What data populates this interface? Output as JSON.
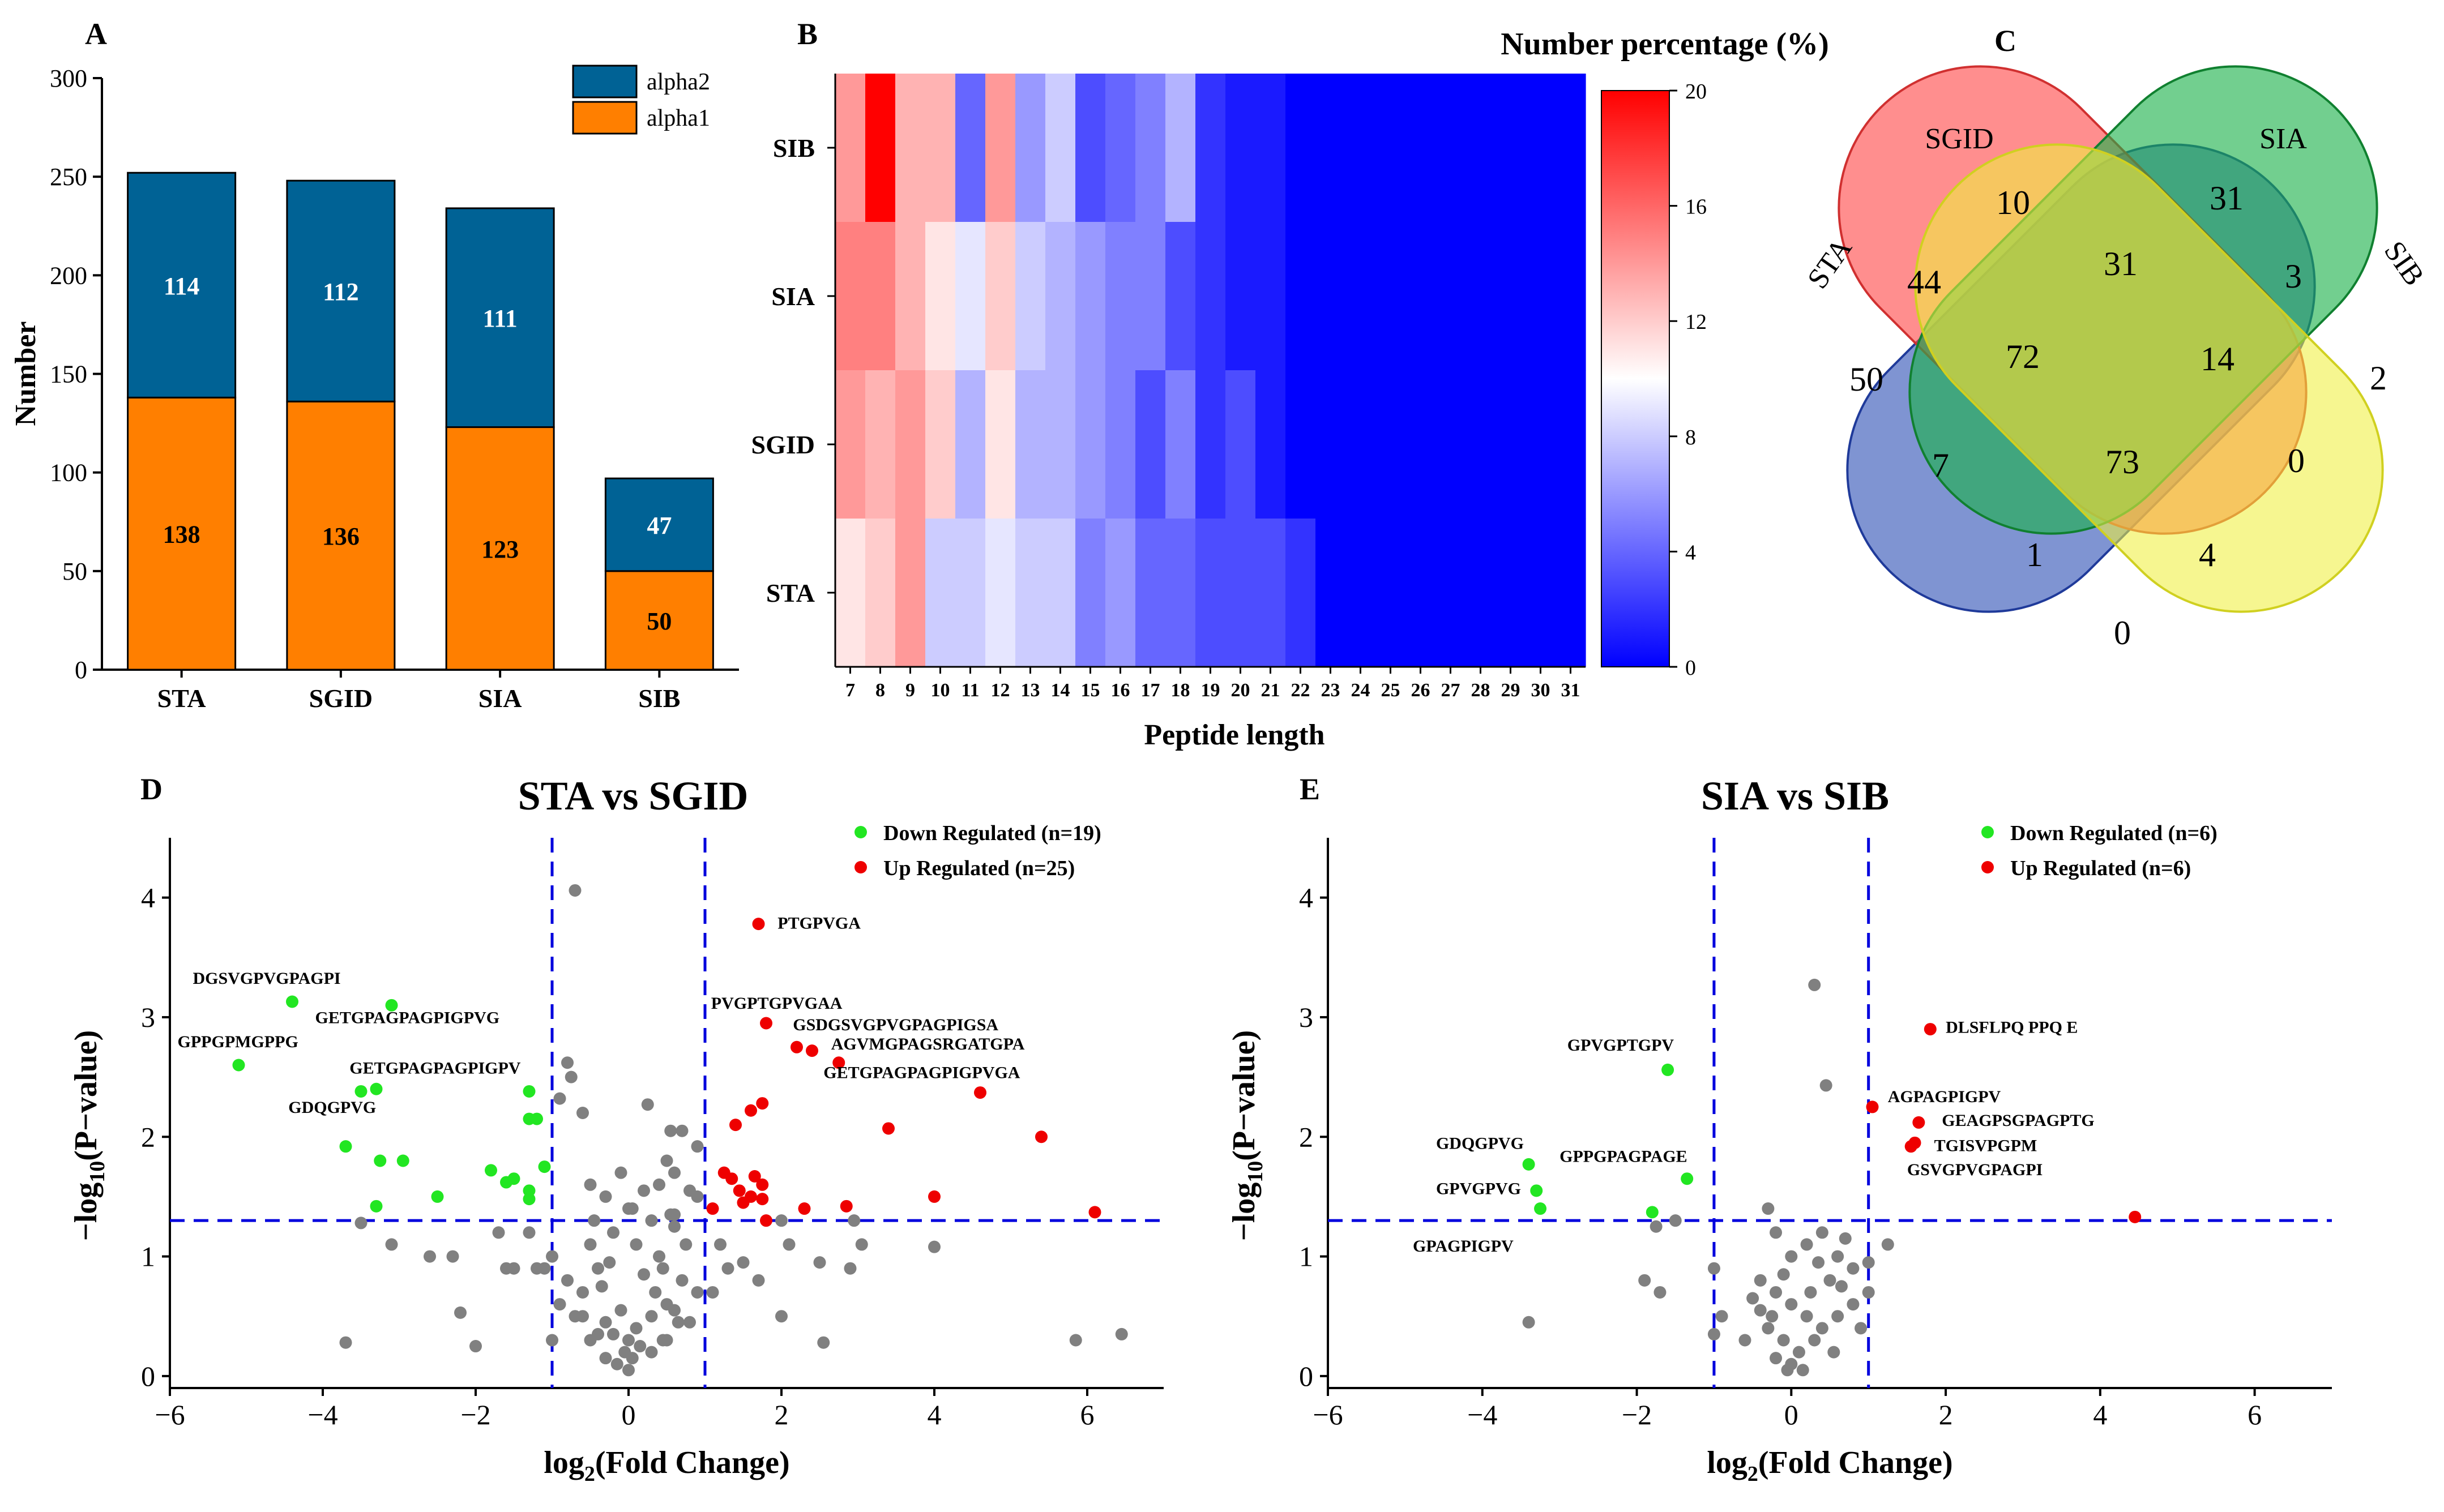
{
  "panels": {
    "A": "A",
    "B": "B",
    "C": "C",
    "D": "D",
    "E": "E"
  },
  "chart_data": [
    {
      "type": "bar",
      "id": "A",
      "stacked": true,
      "categories": [
        "STA",
        "SGID",
        "SIA",
        "SIB"
      ],
      "series": [
        {
          "name": "alpha1",
          "color": "#ff7f00",
          "values": [
            138,
            136,
            123,
            50
          ]
        },
        {
          "name": "alpha2",
          "color": "#006295",
          "values": [
            114,
            112,
            111,
            47
          ]
        }
      ],
      "ylabel": "Number",
      "ylim": [
        0,
        300
      ],
      "yticks": [
        0,
        50,
        100,
        150,
        200,
        250,
        300
      ],
      "legend": [
        "alpha2",
        "alpha1"
      ]
    },
    {
      "type": "heatmap",
      "id": "B",
      "title": "Number percentage (%)",
      "xlabel": "Peptide length",
      "x": [
        7,
        8,
        9,
        10,
        11,
        12,
        13,
        14,
        15,
        16,
        17,
        18,
        19,
        20,
        21,
        22,
        23,
        24,
        25,
        26,
        27,
        28,
        29,
        30,
        31
      ],
      "rows": [
        "SIB",
        "SIA",
        "SGID",
        "STA"
      ],
      "values": [
        [
          14,
          20,
          13,
          13,
          4,
          14,
          6,
          8,
          3,
          4,
          5,
          7,
          2,
          1,
          1,
          0,
          0,
          0,
          0,
          0,
          0,
          0,
          0,
          0,
          0
        ],
        [
          15,
          15,
          13,
          11,
          9,
          12,
          8,
          7,
          6,
          5,
          5,
          3,
          2,
          1,
          1,
          0,
          0,
          0,
          0,
          0,
          0,
          0,
          0,
          0,
          0
        ],
        [
          14,
          13,
          14,
          12,
          7,
          11,
          7,
          7,
          6,
          5,
          3,
          5,
          2,
          3,
          1,
          0,
          0,
          0,
          0,
          0,
          0,
          0,
          0,
          0,
          0
        ],
        [
          11,
          12,
          14,
          8,
          8,
          9,
          8,
          8,
          5,
          6,
          4,
          4,
          3,
          3,
          3,
          2,
          0,
          0,
          0,
          0,
          0,
          0,
          0,
          0,
          0
        ]
      ],
      "colorbar_ticks": [
        0,
        4,
        8,
        12,
        16,
        20
      ],
      "range": [
        0,
        20
      ]
    },
    {
      "type": "venn",
      "id": "C",
      "sets": [
        "SGID",
        "SIA",
        "STA",
        "SIB"
      ],
      "regions": [
        "10",
        "31",
        "44",
        "31",
        "3",
        "50",
        "72",
        "14",
        "2",
        "7",
        "73",
        "0",
        "1",
        "4",
        "0"
      ]
    },
    {
      "type": "scatter",
      "id": "D",
      "title": "STA vs SGID",
      "xlabel": "log2(Fold Change)",
      "ylabel": "-log10(P-value)",
      "xlim": [
        -6,
        7
      ],
      "ylim": [
        -0.1,
        4.5
      ],
      "xticks": [
        -6,
        -4,
        -2,
        0,
        2,
        4,
        6
      ],
      "yticks": [
        0,
        1,
        2,
        3,
        4
      ],
      "thresholds": {
        "fc": [
          -1,
          1
        ],
        "p": 1.3
      },
      "legend": [
        "Down Regulated (n=19)",
        "Up Regulated (n=25)"
      ],
      "down": [
        [
          -4.4,
          3.13
        ],
        [
          -3.1,
          3.1
        ],
        [
          -5.1,
          2.6
        ],
        [
          -3.5,
          2.38
        ],
        [
          -3.3,
          2.4
        ],
        [
          -1.3,
          2.38
        ],
        [
          -1.3,
          2.15
        ],
        [
          -1.2,
          2.15
        ],
        [
          -3.7,
          1.92
        ],
        [
          -3.25,
          1.8
        ],
        [
          -2.95,
          1.8
        ],
        [
          -1.8,
          1.72
        ],
        [
          -1.6,
          1.62
        ],
        [
          -1.5,
          1.65
        ],
        [
          -1.1,
          1.75
        ],
        [
          -1.3,
          1.55
        ],
        [
          -1.3,
          1.48
        ],
        [
          -2.5,
          1.5
        ],
        [
          -3.3,
          1.42
        ]
      ],
      "up": [
        [
          1.7,
          3.78
        ],
        [
          1.8,
          2.95
        ],
        [
          2.2,
          2.75
        ],
        [
          2.4,
          2.72
        ],
        [
          2.75,
          2.62
        ],
        [
          4.6,
          2.37
        ],
        [
          1.75,
          2.28
        ],
        [
          1.6,
          2.22
        ],
        [
          1.4,
          2.1
        ],
        [
          3.4,
          2.07
        ],
        [
          5.4,
          2.0
        ],
        [
          1.25,
          1.7
        ],
        [
          1.35,
          1.65
        ],
        [
          1.65,
          1.67
        ],
        [
          1.75,
          1.6
        ],
        [
          1.45,
          1.55
        ],
        [
          1.6,
          1.5
        ],
        [
          1.75,
          1.48
        ],
        [
          1.5,
          1.45
        ],
        [
          1.1,
          1.4
        ],
        [
          2.3,
          1.4
        ],
        [
          2.85,
          1.42
        ],
        [
          4.0,
          1.5
        ],
        [
          6.1,
          1.37
        ],
        [
          1.8,
          1.3
        ]
      ],
      "grey": [
        [
          -0.7,
          4.06
        ],
        [
          -0.8,
          2.62
        ],
        [
          -0.75,
          2.5
        ],
        [
          -0.9,
          2.32
        ],
        [
          -0.6,
          2.2
        ],
        [
          0.25,
          2.27
        ],
        [
          0.55,
          2.05
        ],
        [
          0.7,
          2.05
        ],
        [
          0.9,
          1.92
        ],
        [
          0.5,
          1.8
        ],
        [
          0.6,
          1.7
        ],
        [
          0.4,
          1.6
        ],
        [
          0.8,
          1.55
        ],
        [
          0.9,
          1.5
        ],
        [
          -0.5,
          1.6
        ],
        [
          -0.3,
          1.5
        ],
        [
          0.0,
          1.4
        ],
        [
          0.3,
          1.3
        ],
        [
          0.6,
          1.25
        ],
        [
          -0.2,
          1.2
        ],
        [
          0.1,
          1.1
        ],
        [
          0.4,
          1.0
        ],
        [
          -0.4,
          0.9
        ],
        [
          0.2,
          0.85
        ],
        [
          0.7,
          0.8
        ],
        [
          -0.6,
          0.7
        ],
        [
          0.5,
          0.6
        ],
        [
          -0.1,
          0.55
        ],
        [
          0.3,
          0.5
        ],
        [
          -0.3,
          0.45
        ],
        [
          0.1,
          0.4
        ],
        [
          -0.2,
          0.35
        ],
        [
          0.0,
          0.3
        ],
        [
          0.15,
          0.25
        ],
        [
          -0.05,
          0.2
        ],
        [
          0.05,
          0.15
        ],
        [
          -0.15,
          0.1
        ],
        [
          0.0,
          0.05
        ],
        [
          -0.5,
          0.3
        ],
        [
          0.5,
          0.3
        ],
        [
          -0.7,
          0.5
        ],
        [
          0.8,
          0.45
        ],
        [
          -0.8,
          0.8
        ],
        [
          0.9,
          0.7
        ],
        [
          -1.2,
          0.9
        ],
        [
          1.2,
          1.1
        ],
        [
          -1.3,
          1.2
        ],
        [
          1.3,
          0.9
        ],
        [
          2.0,
          1.3
        ],
        [
          2.1,
          1.1
        ],
        [
          2.5,
          0.95
        ],
        [
          2.95,
          1.3
        ],
        [
          3.05,
          1.1
        ],
        [
          2.9,
          0.9
        ],
        [
          2.55,
          0.28
        ],
        [
          4.0,
          1.08
        ],
        [
          5.85,
          0.3
        ],
        [
          6.45,
          0.35
        ],
        [
          -3.7,
          0.28
        ],
        [
          -3.5,
          1.28
        ],
        [
          -3.1,
          1.1
        ],
        [
          -2.6,
          1.0
        ],
        [
          -2.3,
          1.0
        ],
        [
          -2.2,
          0.53
        ],
        [
          -2.0,
          0.25
        ],
        [
          -1.0,
          0.3
        ],
        [
          -1.1,
          0.9
        ],
        [
          -1.5,
          0.9
        ],
        [
          -1.7,
          1.2
        ],
        [
          -1.6,
          0.9
        ],
        [
          -0.5,
          1.1
        ],
        [
          0.6,
          1.35
        ],
        [
          -0.9,
          0.6
        ],
        [
          0.35,
          0.7
        ],
        [
          0.45,
          0.9
        ],
        [
          -0.35,
          0.75
        ],
        [
          0.75,
          1.1
        ],
        [
          0.2,
          1.55
        ],
        [
          0.55,
          1.35
        ],
        [
          -0.25,
          0.95
        ],
        [
          -1.0,
          1.0
        ],
        [
          1.7,
          0.8
        ],
        [
          2.0,
          0.5
        ],
        [
          1.5,
          0.95
        ],
        [
          1.1,
          0.7
        ],
        [
          -0.1,
          1.7
        ],
        [
          0.05,
          1.4
        ],
        [
          -0.45,
          1.3
        ],
        [
          0.6,
          0.55
        ],
        [
          -0.6,
          0.5
        ],
        [
          0.3,
          0.2
        ],
        [
          -0.3,
          0.15
        ],
        [
          0.45,
          0.3
        ],
        [
          -0.4,
          0.35
        ],
        [
          0.65,
          0.45
        ]
      ],
      "labels": {
        "PTGPVGA": "PTGPVGA",
        "DGSVGPVGPAGPI": "DGSVGPVGPAGPI",
        "GETGPAGPAGPIGPVG": "GETGPAGPAGPIGPVG",
        "GPPGPMGPPG": "GPPGPMGPPG",
        "GETGPAGPAGPIGPV": "GETGPAGPAGPIGPV",
        "GDQGPVG": "GDQGPVG",
        "PVGPTGPVGAA": "PVGPTGPVGAA",
        "GSDGSVGPVGPAGPIGSA": "GSDGSVGPVGPAGPIGSA",
        "AGVMGPAGSRGATGPA": "AGVMGPAGSRGATGPA",
        "GETGPAGPAGPIGPVGA": "GETGPAGPAGPIGPVGA"
      }
    },
    {
      "type": "scatter",
      "id": "E",
      "title": "SIA vs SIB",
      "xlabel": "log2(Fold Change)",
      "ylabel": "-log10(P-value)",
      "xlim": [
        -6,
        7
      ],
      "ylim": [
        -0.1,
        4.5
      ],
      "xticks": [
        -6,
        -4,
        -2,
        0,
        2,
        4,
        6
      ],
      "yticks": [
        0,
        1,
        2,
        3,
        4
      ],
      "thresholds": {
        "fc": [
          -1,
          1
        ],
        "p": 1.3
      },
      "legend": [
        "Down Regulated (n=6)",
        "Up Regulated (n=6)"
      ],
      "down": [
        [
          -1.6,
          2.56
        ],
        [
          -3.4,
          1.77
        ],
        [
          -1.35,
          1.65
        ],
        [
          -3.3,
          1.55
        ],
        [
          -3.25,
          1.4
        ],
        [
          -1.8,
          1.37
        ]
      ],
      "up": [
        [
          1.8,
          2.9
        ],
        [
          1.05,
          2.25
        ],
        [
          1.65,
          2.12
        ],
        [
          1.6,
          1.95
        ],
        [
          1.55,
          1.92
        ],
        [
          4.45,
          1.33
        ]
      ],
      "grey": [
        [
          0.3,
          3.27
        ],
        [
          0.45,
          2.43
        ],
        [
          -3.4,
          0.45
        ],
        [
          -1.9,
          0.8
        ],
        [
          -1.7,
          0.7
        ],
        [
          -1.75,
          1.25
        ],
        [
          -1.5,
          1.3
        ],
        [
          -1.0,
          0.9
        ],
        [
          -0.9,
          0.5
        ],
        [
          -1.0,
          0.35
        ],
        [
          -0.3,
          1.4
        ],
        [
          -0.2,
          1.2
        ],
        [
          0.0,
          1.0
        ],
        [
          0.2,
          1.1
        ],
        [
          0.4,
          1.2
        ],
        [
          0.6,
          1.0
        ],
        [
          0.8,
          0.9
        ],
        [
          1.0,
          0.95
        ],
        [
          1.25,
          1.1
        ],
        [
          -0.4,
          0.8
        ],
        [
          -0.2,
          0.7
        ],
        [
          0.0,
          0.6
        ],
        [
          0.2,
          0.5
        ],
        [
          0.4,
          0.4
        ],
        [
          0.6,
          0.5
        ],
        [
          0.8,
          0.6
        ],
        [
          1.0,
          0.7
        ],
        [
          -0.3,
          0.4
        ],
        [
          -0.1,
          0.3
        ],
        [
          0.1,
          0.2
        ],
        [
          0.3,
          0.3
        ],
        [
          -0.2,
          0.15
        ],
        [
          0.0,
          0.1
        ],
        [
          0.15,
          0.05
        ],
        [
          -0.05,
          0.05
        ],
        [
          0.5,
          0.8
        ],
        [
          0.7,
          1.15
        ],
        [
          -0.4,
          0.55
        ],
        [
          0.25,
          0.7
        ],
        [
          -0.5,
          0.65
        ],
        [
          0.9,
          0.4
        ],
        [
          -0.6,
          0.3
        ],
        [
          0.55,
          0.2
        ],
        [
          -0.25,
          0.5
        ],
        [
          0.35,
          0.95
        ],
        [
          0.65,
          0.75
        ],
        [
          -0.1,
          0.85
        ]
      ],
      "labels": {
        "GPVGPTGPV": "GPVGPTGPV",
        "GDQGPVG": "GDQGPVG",
        "GPPGPAGPAGE": "GPPGPAGPAGE",
        "GPVGPVG": "GPVGPVG",
        "GPAGPIGPV": "GPAGPIGPV",
        "DLSFLPQ PPQ E": "DLSFLPQ PPQ E",
        "AGPAGPIGPV": "AGPAGPIGPV",
        "GEAGPSGPAGPTG": "GEAGPSGPAGPTG",
        "TGISVPGPM": "TGISVPGPM",
        "GSVGPVGPAGPI": "GSVGPVGPAGPI"
      }
    }
  ]
}
